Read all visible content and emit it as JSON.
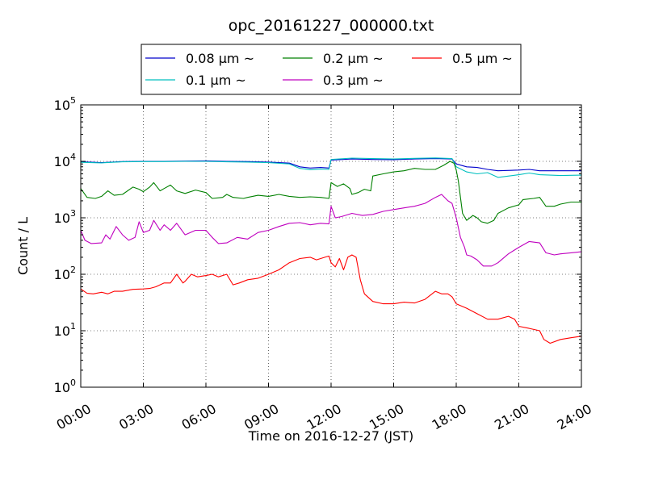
{
  "chart_data": {
    "type": "line",
    "title": "opc_20161227_000000.txt",
    "xlabel": "Time on 2016-12-27 (JST)",
    "ylabel": "Count / L",
    "yscale": "log",
    "xlim": [
      "00:00",
      "24:00"
    ],
    "ylim": [
      1,
      100000
    ],
    "grid": true,
    "legend_position": "top-center",
    "x_ticks": [
      "00:00",
      "03:00",
      "06:00",
      "09:00",
      "12:00",
      "15:00",
      "18:00",
      "21:00",
      "24:00"
    ],
    "y_ticks": [
      {
        "value": 1,
        "base": "10",
        "exp": "0"
      },
      {
        "value": 10,
        "base": "10",
        "exp": "1"
      },
      {
        "value": 100,
        "base": "10",
        "exp": "2"
      },
      {
        "value": 1000,
        "base": "10",
        "exp": "3"
      },
      {
        "value": 10000,
        "base": "10",
        "exp": "4"
      },
      {
        "value": 100000,
        "base": "10",
        "exp": "5"
      }
    ],
    "series": [
      {
        "name": "0.08 μm ~",
        "color": "#0000cc",
        "points": [
          [
            0,
            9800
          ],
          [
            1,
            9500
          ],
          [
            2,
            9900
          ],
          [
            3,
            10000
          ],
          [
            4,
            10000
          ],
          [
            5,
            10100
          ],
          [
            6,
            10200
          ],
          [
            7,
            10000
          ],
          [
            8,
            9900
          ],
          [
            9,
            9700
          ],
          [
            10,
            9300
          ],
          [
            10.5,
            8000
          ],
          [
            11,
            7600
          ],
          [
            11.5,
            7800
          ],
          [
            11.9,
            7600
          ],
          [
            12,
            10500
          ],
          [
            13,
            11000
          ],
          [
            14,
            10800
          ],
          [
            15,
            10700
          ],
          [
            16,
            11000
          ],
          [
            17,
            11200
          ],
          [
            17.8,
            11000
          ],
          [
            18,
            9000
          ],
          [
            18.5,
            8000
          ],
          [
            19,
            7800
          ],
          [
            19.5,
            7200
          ],
          [
            20,
            6800
          ],
          [
            21,
            7000
          ],
          [
            21.5,
            7200
          ],
          [
            22,
            6800
          ],
          [
            23,
            6800
          ],
          [
            24,
            6800
          ]
        ]
      },
      {
        "name": "0.1 μm ~",
        "color": "#00bfbf",
        "points": [
          [
            0,
            9600
          ],
          [
            1,
            9400
          ],
          [
            2,
            9800
          ],
          [
            3,
            9900
          ],
          [
            4,
            9900
          ],
          [
            5,
            10000
          ],
          [
            6,
            10000
          ],
          [
            7,
            9800
          ],
          [
            8,
            9700
          ],
          [
            9,
            9500
          ],
          [
            10,
            9000
          ],
          [
            10.5,
            7500
          ],
          [
            11,
            7100
          ],
          [
            11.5,
            7300
          ],
          [
            11.9,
            7200
          ],
          [
            12,
            10800
          ],
          [
            13,
            11400
          ],
          [
            14,
            11200
          ],
          [
            15,
            11000
          ],
          [
            16,
            11300
          ],
          [
            17,
            11500
          ],
          [
            17.8,
            11200
          ],
          [
            18,
            8000
          ],
          [
            18.5,
            6500
          ],
          [
            19,
            6000
          ],
          [
            19.5,
            6300
          ],
          [
            20,
            5200
          ],
          [
            21,
            5800
          ],
          [
            21.5,
            6200
          ],
          [
            22,
            5800
          ],
          [
            23,
            5600
          ],
          [
            24,
            5700
          ]
        ]
      },
      {
        "name": "0.2 μm ~",
        "color": "#008000",
        "points": [
          [
            0,
            3300
          ],
          [
            0.3,
            2300
          ],
          [
            0.7,
            2200
          ],
          [
            1,
            2400
          ],
          [
            1.3,
            3000
          ],
          [
            1.6,
            2500
          ],
          [
            2,
            2600
          ],
          [
            2.5,
            3500
          ],
          [
            2.8,
            3200
          ],
          [
            3,
            2900
          ],
          [
            3.3,
            3500
          ],
          [
            3.5,
            4200
          ],
          [
            3.8,
            3000
          ],
          [
            4,
            3300
          ],
          [
            4.3,
            3800
          ],
          [
            4.6,
            3000
          ],
          [
            5,
            2700
          ],
          [
            5.5,
            3100
          ],
          [
            6,
            2800
          ],
          [
            6.3,
            2200
          ],
          [
            6.8,
            2300
          ],
          [
            7,
            2600
          ],
          [
            7.3,
            2300
          ],
          [
            7.8,
            2200
          ],
          [
            8,
            2300
          ],
          [
            8.5,
            2500
          ],
          [
            9,
            2400
          ],
          [
            9.5,
            2600
          ],
          [
            10,
            2400
          ],
          [
            10.5,
            2300
          ],
          [
            11,
            2350
          ],
          [
            11.5,
            2300
          ],
          [
            11.9,
            2200
          ],
          [
            12,
            4200
          ],
          [
            12.3,
            3600
          ],
          [
            12.6,
            4000
          ],
          [
            12.9,
            3300
          ],
          [
            13,
            2600
          ],
          [
            13.3,
            2800
          ],
          [
            13.6,
            3200
          ],
          [
            13.9,
            3000
          ],
          [
            14,
            5500
          ],
          [
            14.5,
            6000
          ],
          [
            15,
            6500
          ],
          [
            15.5,
            6800
          ],
          [
            16,
            7500
          ],
          [
            16.5,
            7200
          ],
          [
            17,
            7200
          ],
          [
            17.4,
            8500
          ],
          [
            17.7,
            10000
          ],
          [
            17.9,
            9200
          ],
          [
            18,
            7000
          ],
          [
            18.1,
            4500
          ],
          [
            18.3,
            1200
          ],
          [
            18.5,
            900
          ],
          [
            18.8,
            1100
          ],
          [
            19,
            1000
          ],
          [
            19.2,
            850
          ],
          [
            19.5,
            800
          ],
          [
            19.8,
            900
          ],
          [
            20,
            1200
          ],
          [
            20.5,
            1500
          ],
          [
            21,
            1700
          ],
          [
            21.2,
            2100
          ],
          [
            21.7,
            2200
          ],
          [
            22,
            2300
          ],
          [
            22.3,
            1600
          ],
          [
            22.7,
            1600
          ],
          [
            23,
            1750
          ],
          [
            23.5,
            1900
          ],
          [
            24,
            1900
          ]
        ]
      },
      {
        "name": "0.3 μm ~",
        "color": "#bf00bf",
        "points": [
          [
            0,
            600
          ],
          [
            0.2,
            400
          ],
          [
            0.5,
            350
          ],
          [
            1,
            360
          ],
          [
            1.2,
            500
          ],
          [
            1.4,
            420
          ],
          [
            1.7,
            700
          ],
          [
            2,
            500
          ],
          [
            2.3,
            400
          ],
          [
            2.6,
            450
          ],
          [
            2.8,
            850
          ],
          [
            3,
            550
          ],
          [
            3.3,
            600
          ],
          [
            3.5,
            900
          ],
          [
            3.8,
            600
          ],
          [
            4,
            750
          ],
          [
            4.3,
            600
          ],
          [
            4.6,
            800
          ],
          [
            5,
            500
          ],
          [
            5.5,
            600
          ],
          [
            6,
            600
          ],
          [
            6.3,
            450
          ],
          [
            6.6,
            350
          ],
          [
            7,
            360
          ],
          [
            7.5,
            450
          ],
          [
            8,
            420
          ],
          [
            8.5,
            550
          ],
          [
            9,
            600
          ],
          [
            9.5,
            700
          ],
          [
            10,
            800
          ],
          [
            10.5,
            820
          ],
          [
            11,
            750
          ],
          [
            11.5,
            800
          ],
          [
            11.9,
            780
          ],
          [
            12,
            1600
          ],
          [
            12.2,
            1000
          ],
          [
            12.5,
            1050
          ],
          [
            13,
            1200
          ],
          [
            13.5,
            1100
          ],
          [
            14,
            1150
          ],
          [
            14.5,
            1300
          ],
          [
            15,
            1400
          ],
          [
            15.5,
            1500
          ],
          [
            16,
            1600
          ],
          [
            16.5,
            1800
          ],
          [
            17,
            2300
          ],
          [
            17.3,
            2600
          ],
          [
            17.6,
            2000
          ],
          [
            17.8,
            1800
          ],
          [
            18,
            1000
          ],
          [
            18.2,
            450
          ],
          [
            18.4,
            300
          ],
          [
            18.5,
            220
          ],
          [
            18.7,
            210
          ],
          [
            19,
            180
          ],
          [
            19.3,
            140
          ],
          [
            19.7,
            140
          ],
          [
            20,
            160
          ],
          [
            20.5,
            230
          ],
          [
            21,
            300
          ],
          [
            21.5,
            380
          ],
          [
            22,
            360
          ],
          [
            22.3,
            240
          ],
          [
            22.7,
            220
          ],
          [
            23,
            230
          ],
          [
            23.5,
            240
          ],
          [
            24,
            250
          ]
        ]
      },
      {
        "name": "0.5 μm ~",
        "color": "#ff0000",
        "points": [
          [
            0,
            55
          ],
          [
            0.3,
            46
          ],
          [
            0.6,
            45
          ],
          [
            1,
            48
          ],
          [
            1.3,
            45
          ],
          [
            1.6,
            50
          ],
          [
            2,
            50
          ],
          [
            2.5,
            54
          ],
          [
            3,
            55
          ],
          [
            3.3,
            56
          ],
          [
            3.6,
            60
          ],
          [
            4,
            70
          ],
          [
            4.3,
            70
          ],
          [
            4.6,
            100
          ],
          [
            4.9,
            70
          ],
          [
            5,
            75
          ],
          [
            5.3,
            100
          ],
          [
            5.6,
            90
          ],
          [
            6,
            95
          ],
          [
            6.3,
            100
          ],
          [
            6.6,
            90
          ],
          [
            7,
            100
          ],
          [
            7.3,
            65
          ],
          [
            7.6,
            70
          ],
          [
            8,
            80
          ],
          [
            8.5,
            85
          ],
          [
            9,
            100
          ],
          [
            9.5,
            120
          ],
          [
            10,
            160
          ],
          [
            10.5,
            190
          ],
          [
            11,
            200
          ],
          [
            11.3,
            180
          ],
          [
            11.7,
            200
          ],
          [
            11.9,
            210
          ],
          [
            12,
            160
          ],
          [
            12.2,
            135
          ],
          [
            12.4,
            190
          ],
          [
            12.6,
            120
          ],
          [
            12.8,
            200
          ],
          [
            13,
            220
          ],
          [
            13.2,
            200
          ],
          [
            13.4,
            80
          ],
          [
            13.6,
            45
          ],
          [
            14,
            33
          ],
          [
            14.5,
            30
          ],
          [
            15,
            30
          ],
          [
            15.5,
            32
          ],
          [
            16,
            31
          ],
          [
            16.5,
            36
          ],
          [
            17,
            50
          ],
          [
            17.3,
            45
          ],
          [
            17.6,
            45
          ],
          [
            17.8,
            40
          ],
          [
            18,
            30
          ],
          [
            18.5,
            25
          ],
          [
            19,
            20
          ],
          [
            19.5,
            16
          ],
          [
            20,
            16
          ],
          [
            20.5,
            18
          ],
          [
            20.8,
            16
          ],
          [
            21,
            12
          ],
          [
            21.5,
            11
          ],
          [
            22,
            10
          ],
          [
            22.2,
            7
          ],
          [
            22.5,
            6
          ],
          [
            23,
            7
          ],
          [
            23.5,
            7.5
          ],
          [
            24,
            8
          ]
        ]
      }
    ]
  }
}
